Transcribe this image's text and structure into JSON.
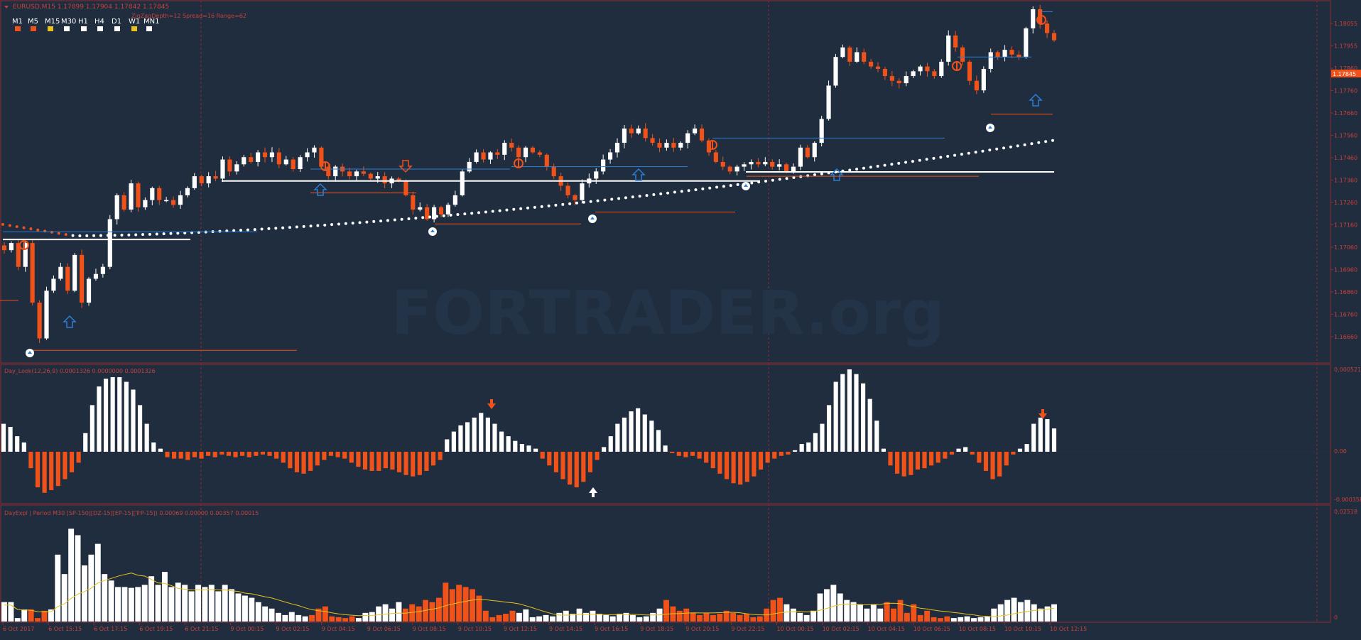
{
  "colors": {
    "background": "#1f2d3f",
    "bull": "#ffffff",
    "bear": "#f0521a",
    "grid": "#8b2b30",
    "text": "#c8413a",
    "up_arrow": "#2b7fd6",
    "ma_line": "#e8c21a",
    "level_blue": "#2b7fd6",
    "level_orange": "#f0521a"
  },
  "header": {
    "symbol_line": "EURUSD,M15  1.17899 1.17904 1.17842 1.17845",
    "info_line": "ZigZagDepth=12  Spread=16  Range=62",
    "timeframes": [
      {
        "label": "M1",
        "color": "#f0521a"
      },
      {
        "label": "M5",
        "color": "#f0521a"
      },
      {
        "label": "M15",
        "color": "#e8c21a"
      },
      {
        "label": "M30",
        "color": "#ffffff"
      },
      {
        "label": "H1",
        "color": "#ffffff"
      },
      {
        "label": "H4",
        "color": "#ffffff"
      },
      {
        "label": "D1",
        "color": "#ffffff"
      },
      {
        "label": "W1",
        "color": "#e8c21a"
      },
      {
        "label": "MN1",
        "color": "#ffffff"
      }
    ]
  },
  "watermark": "FORTRADER.org",
  "current_price_label": "1.17845",
  "price_axis_labels": [
    "1.18055",
    "1.17955",
    "1.17860",
    "1.17760",
    "1.17660",
    "1.17560",
    "1.17460",
    "1.17360",
    "1.17260",
    "1.17160",
    "1.17060",
    "1.16960",
    "1.16860",
    "1.16760",
    "1.16660"
  ],
  "panel2": {
    "title": "Day_Look(12,26,9) 0.0001326 0.0000000 0.0001326",
    "axis_labels": [
      "0.000521",
      "0.00",
      "-0.000358"
    ]
  },
  "panel3": {
    "title": "DayExpl | Period M30 [SP-150][DZ-15][EP-15][TrP-15]) 0.00069 0.00000 0.00357 0.00015",
    "axis_labels": [
      "0.02518",
      "0"
    ]
  },
  "time_axis_labels": [
    "6 Oct 2017",
    "6 Oct 15:15",
    "6 Oct 17:15",
    "6 Oct 19:15",
    "6 Oct 21:15",
    "9 Oct 00:15",
    "9 Oct 02:15",
    "9 Oct 04:15",
    "9 Oct 06:15",
    "9 Oct 08:15",
    "9 Oct 10:15",
    "9 Oct 12:15",
    "9 Oct 14:15",
    "9 Oct 16:15",
    "9 Oct 18:15",
    "9 Oct 20:15",
    "9 Oct 22:15",
    "10 Oct 00:15",
    "10 Oct 02:15",
    "10 Oct 04:15",
    "10 Oct 06:15",
    "10 Oct 08:15",
    "10 Oct 10:15",
    "10 Oct 12:15"
  ],
  "chart_data": [
    {
      "type": "candlestick",
      "title": "EURUSD,M15",
      "ylim": [
        1.1664,
        1.181
      ],
      "x": [
        "6 Oct 2017",
        "6 Oct 15:15",
        "6 Oct 17:15",
        "6 Oct 19:15",
        "6 Oct 21:15",
        "9 Oct 00:15",
        "9 Oct 02:15",
        "9 Oct 04:15",
        "9 Oct 06:15",
        "9 Oct 08:15",
        "9 Oct 10:15",
        "9 Oct 12:15",
        "9 Oct 14:15",
        "9 Oct 16:15",
        "9 Oct 18:15",
        "9 Oct 20:15",
        "9 Oct 22:15",
        "10 Oct 00:15",
        "10 Oct 02:15",
        "10 Oct 04:15",
        "10 Oct 06:15",
        "10 Oct 08:15",
        "10 Oct 10:15",
        "10 Oct 12:15"
      ],
      "close_path": [
        1.1707,
        1.171,
        1.17,
        1.171,
        1.1685,
        1.167,
        1.169,
        1.1695,
        1.17,
        1.169,
        1.1705,
        1.1685,
        1.1695,
        1.1697,
        1.17,
        1.172,
        1.173,
        1.1724,
        1.1735,
        1.1725,
        1.1728,
        1.1733,
        1.1728,
        1.1728,
        1.1726,
        1.173,
        1.1733,
        1.1738,
        1.1735,
        1.1738,
        1.1737,
        1.1745,
        1.174,
        1.1743,
        1.1746,
        1.1744,
        1.1748,
        1.1746,
        1.1748,
        1.1743,
        1.1745,
        1.1741,
        1.1746,
        1.1748,
        1.175,
        1.1742,
        1.1738,
        1.1742,
        1.174,
        1.1738,
        1.174,
        1.1739,
        1.1737,
        1.1738,
        1.1735,
        1.1737,
        1.1736,
        1.173,
        1.1724,
        1.1725,
        1.172,
        1.1725,
        1.1722,
        1.1726,
        1.173,
        1.174,
        1.1744,
        1.1748,
        1.1745,
        1.1748,
        1.1747,
        1.1752,
        1.175,
        1.1746,
        1.175,
        1.1748,
        1.1747,
        1.1742,
        1.1738,
        1.1734,
        1.173,
        1.1728,
        1.1735,
        1.1737,
        1.174,
        1.1745,
        1.1748,
        1.1752,
        1.1758,
        1.1756,
        1.1758,
        1.1754,
        1.1752,
        1.175,
        1.1752,
        1.175,
        1.1752,
        1.1756,
        1.1758,
        1.1753,
        1.1748,
        1.1744,
        1.1742,
        1.174,
        1.1742,
        1.1743,
        1.1744,
        1.1743,
        1.1744,
        1.1742,
        1.1743,
        1.174,
        1.1742,
        1.175,
        1.1746,
        1.1752,
        1.1762,
        1.1776,
        1.1788,
        1.1792,
        1.1786,
        1.179,
        1.1786,
        1.1784,
        1.1783,
        1.178,
        1.1778,
        1.1777,
        1.178,
        1.1782,
        1.1784,
        1.1782,
        1.178,
        1.1786,
        1.1797,
        1.1792,
        1.1786,
        1.1778,
        1.1774,
        1.1783,
        1.179,
        1.1788,
        1.1791,
        1.1789,
        1.1788,
        1.18,
        1.1808,
        1.1802,
        1.1798,
        1.1795
      ],
      "current_price": 1.17845,
      "zigzag_lows": [
        1.1665,
        1.1723,
        1.1727,
        1.1741,
        1.1772
      ],
      "zigzag_highs": [
        1.1712,
        1.1747,
        1.1747,
        1.1755,
        1.1797,
        1.1807
      ],
      "dotted_ma": "white dots rising from 1.1718 to 1.1751"
    },
    {
      "type": "bar",
      "title": "Day_Look(12,26,9) 0.0001326 0.0000000 0.0001326",
      "ylim": [
        -0.000358,
        0.000521
      ],
      "values": [
        0.00018,
        0.00016,
        0.0001,
        6e-05,
        -0.00012,
        -0.00026,
        -0.0003,
        -0.00028,
        -0.00025,
        -0.0002,
        -0.00015,
        -8e-05,
        0.00012,
        0.0003,
        0.00042,
        0.00047,
        0.00048,
        0.00048,
        0.00045,
        0.0004,
        0.0003,
        0.00018,
        6e-05,
        2e-05,
        -4e-05,
        -5e-05,
        -5e-05,
        -6e-05,
        -4e-05,
        -5e-05,
        -3e-05,
        -4e-05,
        -2e-05,
        -3e-05,
        -4e-05,
        -3e-05,
        -4e-05,
        -3e-05,
        -2e-05,
        -3e-05,
        -5e-05,
        -8e-05,
        -0.00012,
        -0.00015,
        -0.00016,
        -0.00014,
        -0.0001,
        -6e-05,
        -3e-05,
        -4e-05,
        -5e-05,
        -8e-05,
        -0.00011,
        -0.00013,
        -0.00014,
        -0.00014,
        -0.00012,
        -0.00013,
        -0.00015,
        -0.00017,
        -0.00018,
        -0.00017,
        -0.00014,
        -0.0001,
        -6e-05,
        8e-05,
        0.00013,
        0.00017,
        0.00019,
        0.00022,
        0.00025,
        0.00022,
        0.00018,
        0.00013,
        0.0001,
        7e-05,
        5e-05,
        4e-05,
        2e-05,
        -5e-05,
        -0.0001,
        -0.00015,
        -0.0002,
        -0.00024,
        -0.00026,
        -0.00022,
        -0.00015,
        -6e-05,
        3e-05,
        0.0001,
        0.00018,
        0.00022,
        0.00026,
        0.00028,
        0.00024,
        0.0002,
        0.00014,
        4e-05,
        -1e-05,
        -3e-05,
        -4e-05,
        -3e-05,
        -5e-05,
        -8e-05,
        -0.00012,
        -0.00016,
        -0.0002,
        -0.00023,
        -0.00024,
        -0.00022,
        -0.00018,
        -0.00013,
        -8e-05,
        -5e-05,
        -3e-05,
        -2e-05,
        1e-05,
        5e-05,
        6e-05,
        0.00012,
        0.00018,
        0.0003,
        0.00045,
        0.0005,
        0.00053,
        0.0005,
        0.00044,
        0.00034,
        0.0002,
        2e-05,
        -0.0001,
        -0.00016,
        -0.00018,
        -0.00017,
        -0.00013,
        -0.00012,
        -0.0001,
        -8e-05,
        -5e-05,
        -2e-05,
        2e-05,
        3e-05,
        -2e-05,
        -8e-05,
        -0.00014,
        -0.0002,
        -0.00018,
        -0.0001,
        -2e-05,
        2e-05,
        5e-05,
        0.00018,
        0.00022,
        0.00021,
        0.00015
      ],
      "markers": [
        "orange down-arrow near 9 Oct 12:15 peak",
        "white up-arrow near 9 Oct 16:15 trough",
        "orange down-arrow at last bars"
      ]
    },
    {
      "type": "bar",
      "title": "DayExpl | Period M30 [SP-150][DZ-15][EP-15][TrP-15]) 0.00069 0.00000 0.00357 0.00015",
      "ylim": [
        0,
        0.02518
      ],
      "values": [
        0.0045,
        0.0045,
        0.0008,
        0.0028,
        0.0028,
        0.0008,
        0.0025,
        0.0028,
        0.0155,
        0.011,
        0.0215,
        0.02,
        0.013,
        0.0155,
        0.018,
        0.011,
        0.0095,
        0.008,
        0.008,
        0.0078,
        0.008,
        0.0085,
        0.0105,
        0.0085,
        0.0115,
        0.008,
        0.009,
        0.0085,
        0.007,
        0.0085,
        0.008,
        0.0085,
        0.007,
        0.0085,
        0.0075,
        0.0065,
        0.006,
        0.0055,
        0.0045,
        0.0035,
        0.003,
        0.002,
        0.0015,
        0.0022,
        0.0015,
        0.0012,
        0.0015,
        0.003,
        0.0035,
        0.0012,
        0.001,
        0.0008,
        0.0012,
        0.0008,
        0.002,
        0.0022,
        0.0035,
        0.004,
        0.003,
        0.0045,
        0.003,
        0.004,
        0.0035,
        0.005,
        0.0045,
        0.0055,
        0.009,
        0.0075,
        0.0085,
        0.008,
        0.0075,
        0.006,
        0.0025,
        0.001,
        0.0015,
        0.0018,
        0.0025,
        0.002,
        0.0028,
        0.001,
        0.0012,
        0.0015,
        0.0012,
        0.002,
        0.0025,
        0.0018,
        0.003,
        0.002,
        0.0025,
        0.0018,
        0.0015,
        0.0012,
        0.0018,
        0.002,
        0.0015,
        0.001,
        0.0012,
        0.002,
        0.003,
        0.005,
        0.0035,
        0.0025,
        0.003,
        0.002,
        0.0015,
        0.002,
        0.0015,
        0.0018,
        0.0025,
        0.002,
        0.0015,
        0.0018,
        0.001,
        0.0012,
        0.003,
        0.005,
        0.0055,
        0.004,
        0.003,
        0.002,
        0.0015,
        0.0025,
        0.0065,
        0.0075,
        0.0085,
        0.0065,
        0.005,
        0.0045,
        0.004,
        0.003,
        0.004,
        0.003,
        0.0045,
        0.003,
        0.005,
        0.002,
        0.004,
        0.0015,
        0.0025,
        0.001,
        0.0008,
        0.0012,
        0.0008,
        0.001,
        0.0012,
        0.0008,
        0.001,
        0.0012,
        0.003,
        0.004,
        0.005,
        0.0055,
        0.0045,
        0.005,
        0.004,
        0.003,
        0.0035,
        0.004
      ],
      "bar_sides": "bull/bear coloured (white / orange)",
      "signal_line": "yellow moving average of values"
    }
  ]
}
